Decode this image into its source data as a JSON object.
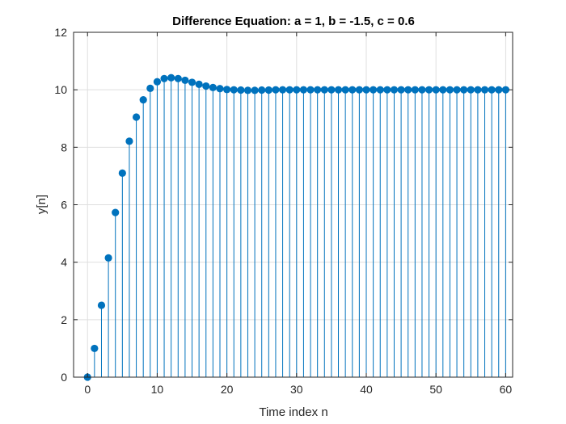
{
  "chart_data": {
    "type": "stem",
    "title": "Difference Equation: a = 1, b = -1.5, c = 0.6",
    "xlabel": "Time index n",
    "ylabel": "y[n]",
    "xlim": [
      -2,
      61
    ],
    "ylim": [
      0,
      12
    ],
    "xticks": [
      0,
      10,
      20,
      30,
      40,
      50,
      60
    ],
    "yticks": [
      0,
      2,
      4,
      6,
      8,
      10,
      12
    ],
    "grid": true,
    "color": "#0072BD",
    "x": [
      0,
      1,
      2,
      3,
      4,
      5,
      6,
      7,
      8,
      9,
      10,
      11,
      12,
      13,
      14,
      15,
      16,
      17,
      18,
      19,
      20,
      21,
      22,
      23,
      24,
      25,
      26,
      27,
      28,
      29,
      30,
      31,
      32,
      33,
      34,
      35,
      36,
      37,
      38,
      39,
      40,
      41,
      42,
      43,
      44,
      45,
      46,
      47,
      48,
      49,
      50,
      51,
      52,
      53,
      54,
      55,
      56,
      57,
      58,
      59,
      60
    ],
    "y": [
      0,
      1,
      2.5,
      4.15,
      5.73,
      7.1,
      8.21,
      9.05,
      9.65,
      10.05,
      10.28,
      10.39,
      10.42,
      10.39,
      10.33,
      10.26,
      10.19,
      10.13,
      10.08,
      10.04,
      10.01,
      10,
      9.99,
      9.98,
      9.98,
      9.99,
      9.99,
      10,
      10,
      10,
      10,
      10,
      10,
      10,
      10,
      10,
      10,
      10,
      10,
      10,
      10,
      10,
      10,
      10,
      10,
      10,
      10,
      10,
      10,
      10,
      10,
      10,
      10,
      10,
      10,
      10,
      10,
      10,
      10,
      10,
      10
    ]
  }
}
